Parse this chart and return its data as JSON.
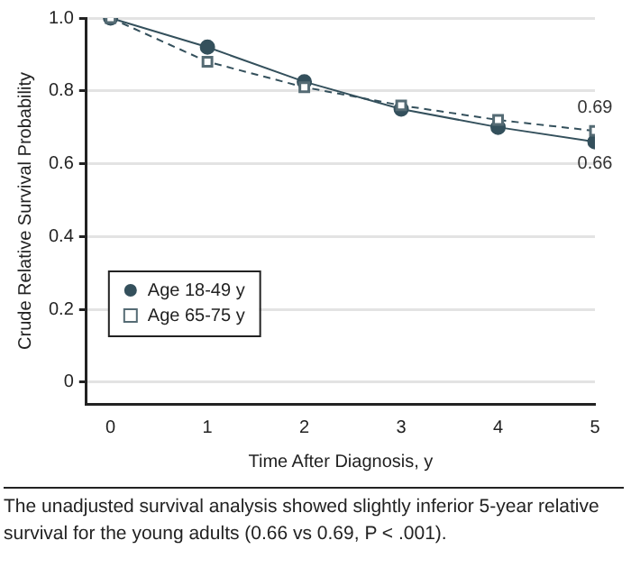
{
  "chart_data": {
    "type": "line",
    "xlabel": "Time After Diagnosis, y",
    "ylabel": "Crude Relative Survival Probability",
    "x": [
      0,
      1,
      2,
      3,
      4,
      5
    ],
    "series": [
      {
        "name": "Age 18-49 y",
        "color": "#34505c",
        "values": [
          1,
          0.92,
          0.825,
          0.75,
          0.7,
          0.66
        ],
        "marker": "circle",
        "line_style": "solid"
      },
      {
        "name": "Age 65-75 y",
        "color": "#34505c",
        "values": [
          1,
          0.88,
          0.81,
          0.76,
          0.72,
          0.69
        ],
        "marker": "square",
        "line_style": "dashed"
      }
    ],
    "xlim": [
      -0.25,
      5
    ],
    "xticks": [
      0,
      1,
      2,
      3,
      4,
      5
    ],
    "ylim": [
      -0.06,
      1
    ],
    "yticks": [
      0,
      0.2,
      0.4,
      0.6,
      0.8,
      {
        "value": 1,
        "label": "1.0"
      }
    ],
    "grid": "y",
    "legend": "bottom left",
    "annotations": [
      {
        "text": "0.69",
        "x": 5,
        "y": 0.69
      },
      {
        "text": "0.66",
        "x": 5,
        "y": 0.66
      },
      "The unadjusted survival analysis showed slightly inferior 5-year relative survival for the young adults (0.66 vs 0.69, P < .001)."
    ]
  }
}
